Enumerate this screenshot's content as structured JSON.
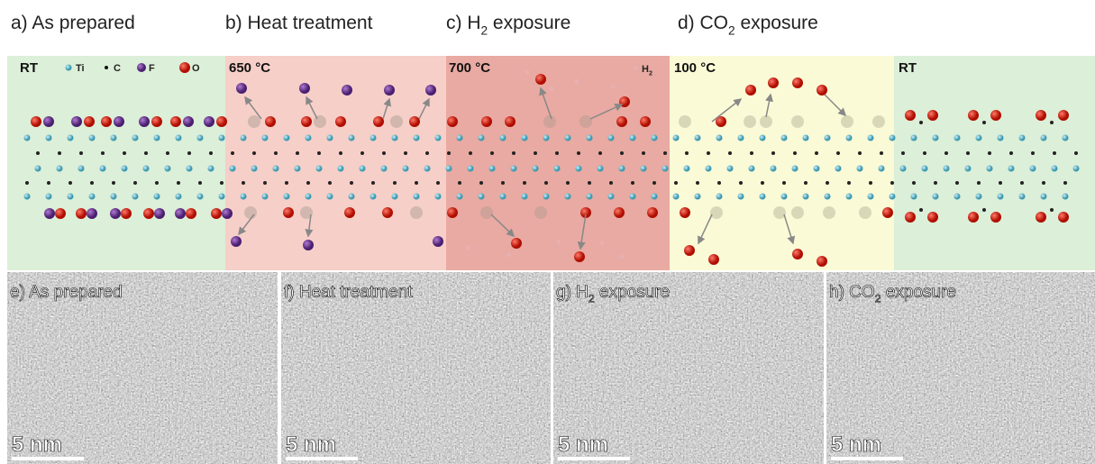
{
  "top_labels": [
    {
      "text": "a) As prepared"
    },
    {
      "text": "b) Heat treatment"
    },
    {
      "text": "c) H",
      "sub": "2",
      "tail": " exposure"
    },
    {
      "text": "d) CO",
      "sub": "2",
      "tail": " exposure"
    }
  ],
  "conditions": [
    "RT",
    "650 °C",
    "700 °C",
    "100 °C",
    "RT"
  ],
  "legend": [
    "Ti",
    "C",
    "F",
    "O"
  ],
  "h2_label": {
    "text": "H",
    "sub": "2"
  },
  "tem_panels": [
    {
      "text": "e) As prepared",
      "scale_bar": "5 nm"
    },
    {
      "text": "f) Heat treatment",
      "scale_bar": "5 nm"
    },
    {
      "text": "g) H",
      "sub": "2",
      "tail": " exposure",
      "scale_bar": "5 nm"
    },
    {
      "text": "h) CO",
      "sub": "2",
      "tail": " exposure",
      "scale_bar": "5 nm"
    }
  ]
}
